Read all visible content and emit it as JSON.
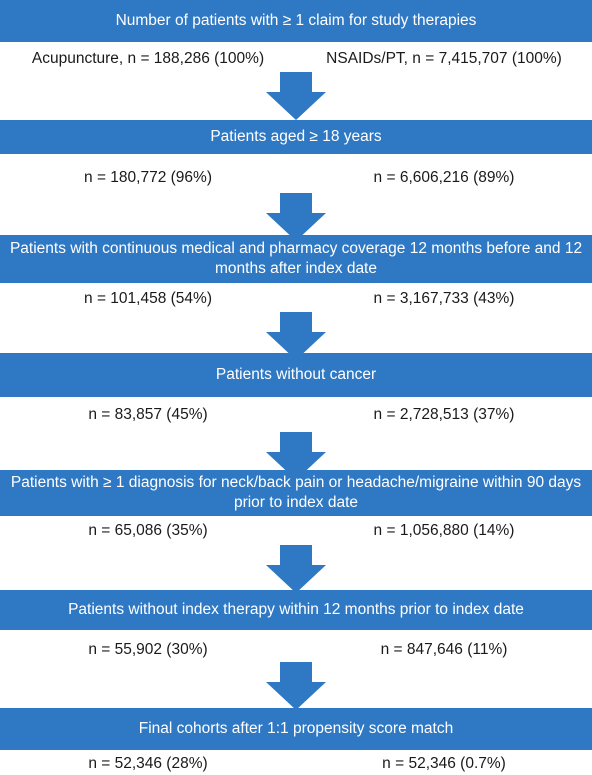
{
  "steps": [
    {
      "title": "Number of patients with ≥ 1 claim for study therapies",
      "left": "Acupuncture, n = 188,286 (100%)",
      "right": "NSAIDs/PT, n = 7,415,707 (100%)"
    },
    {
      "title": "Patients aged ≥ 18 years",
      "left": "n = 180,772 (96%)",
      "right": "n = 6,606,216 (89%)"
    },
    {
      "title": "Patients with continuous medical and pharmacy coverage 12 months before and 12 months after index date",
      "left": "n = 101,458 (54%)",
      "right": "n = 3,167,733 (43%)"
    },
    {
      "title": "Patients without cancer",
      "left": "n = 83,857 (45%)",
      "right": "n = 2,728,513 (37%)"
    },
    {
      "title": "Patients with ≥ 1 diagnosis for neck/back pain or headache/migraine within 90 days prior to index date",
      "left": "n = 65,086 (35%)",
      "right": "n = 1,056,880 (14%)"
    },
    {
      "title": "Patients without index therapy within 12 months prior to index date",
      "left": "n = 55,902 (30%)",
      "right": "n = 847,646 (11%)"
    },
    {
      "title": "Final cohorts after 1:1 propensity score match",
      "left": "n = 52,346 (28%)",
      "right": "n = 52,346 (0.7%)"
    }
  ],
  "colors": {
    "band": "#2f78c4",
    "arrow": "#2f78c4",
    "band_text": "#ffffff"
  }
}
